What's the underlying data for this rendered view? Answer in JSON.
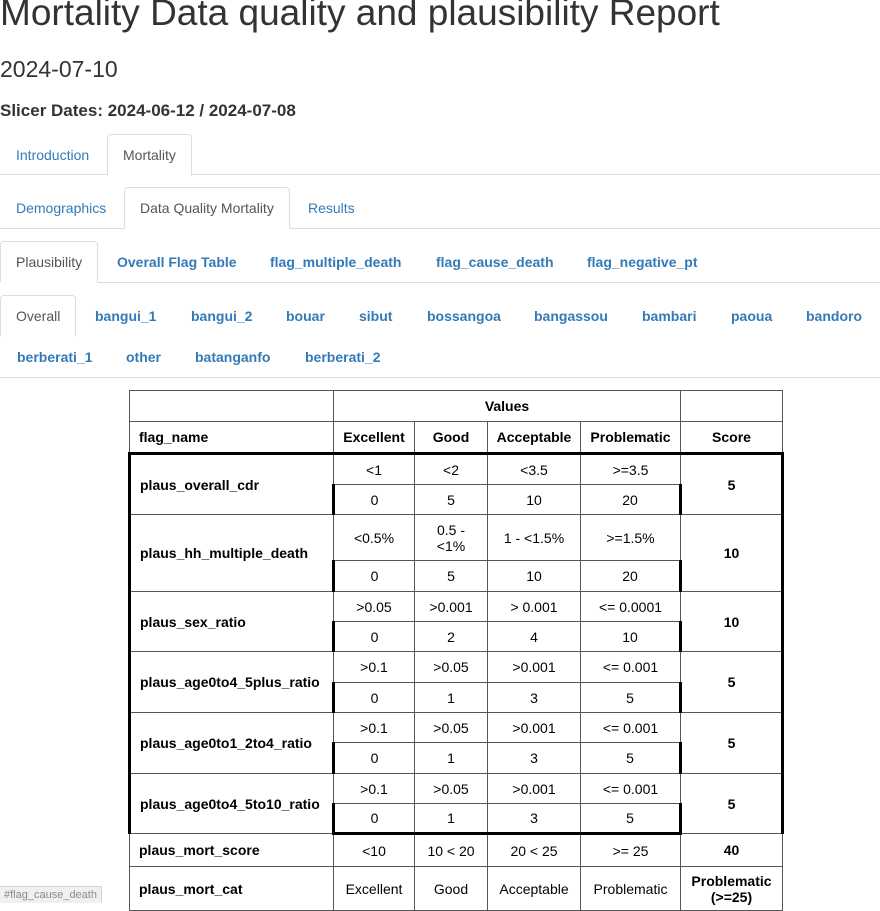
{
  "page": {
    "title": "Mortality Data quality and plausibility Report",
    "date": "2024-07-10",
    "slicer_dates": "Slicer Dates: 2024-06-12 / 2024-07-08"
  },
  "tabs_main": [
    {
      "label": "Introduction",
      "active": false
    },
    {
      "label": "Mortality",
      "active": true
    }
  ],
  "tabs_mortality": [
    {
      "label": "Demographics",
      "active": false
    },
    {
      "label": "Data Quality Mortality",
      "active": true
    },
    {
      "label": "Results",
      "active": false
    }
  ],
  "tabs_quality": [
    {
      "label": "Plausibility",
      "active": true
    },
    {
      "label": "Overall Flag Table",
      "active": false
    },
    {
      "label": "flag_multiple_death",
      "active": false
    },
    {
      "label": "flag_cause_death",
      "active": false
    },
    {
      "label": "flag_negative_pt",
      "active": false
    }
  ],
  "tabs_location": [
    {
      "label": "Overall",
      "active": true
    },
    {
      "label": "bangui_1"
    },
    {
      "label": "bangui_2"
    },
    {
      "label": "bouar"
    },
    {
      "label": "sibut"
    },
    {
      "label": "bossangoa"
    },
    {
      "label": "bangassou"
    },
    {
      "label": "bambari"
    },
    {
      "label": "paoua"
    },
    {
      "label": "bandoro"
    },
    {
      "label": "berberati_1"
    },
    {
      "label": "other"
    },
    {
      "label": "batanganfo"
    },
    {
      "label": "berberati_2"
    }
  ],
  "table": {
    "header_values": "Values",
    "columns": [
      "flag_name",
      "Excellent",
      "Good",
      "Acceptable",
      "Problematic",
      "Score"
    ],
    "rows": [
      {
        "name": "plaus_overall_cdr",
        "thresholds": [
          "<1",
          "<2",
          "<3.5",
          ">=3.5"
        ],
        "points": [
          "0",
          "5",
          "10",
          "20"
        ],
        "score": "5"
      },
      {
        "name": "plaus_hh_multiple_death",
        "thresholds": [
          "<0.5%",
          "0.5 - <1%",
          "1 - <1.5%",
          ">=1.5%"
        ],
        "points": [
          "0",
          "5",
          "10",
          "20"
        ],
        "score": "10"
      },
      {
        "name": "plaus_sex_ratio",
        "thresholds": [
          ">0.05",
          ">0.001",
          "> 0.001",
          "<= 0.0001"
        ],
        "points": [
          "0",
          "2",
          "4",
          "10"
        ],
        "score": "10"
      },
      {
        "name": "plaus_age0to4_5plus_ratio",
        "thresholds": [
          ">0.1",
          ">0.05",
          ">0.001",
          "<= 0.001"
        ],
        "points": [
          "0",
          "1",
          "3",
          "5"
        ],
        "score": "5"
      },
      {
        "name": "plaus_age0to1_2to4_ratio",
        "thresholds": [
          ">0.1",
          ">0.05",
          ">0.001",
          "<= 0.001"
        ],
        "points": [
          "0",
          "1",
          "3",
          "5"
        ],
        "score": "5"
      },
      {
        "name": "plaus_age0to4_5to10_ratio",
        "thresholds": [
          ">0.1",
          ">0.05",
          ">0.001",
          "<= 0.001"
        ],
        "points": [
          "0",
          "1",
          "3",
          "5"
        ],
        "score": "5"
      }
    ],
    "score_row": {
      "name": "plaus_mort_score",
      "values": [
        "<10",
        "10 < 20",
        "20 < 25",
        ">= 25"
      ],
      "score": "40"
    },
    "cat_row": {
      "name": "plaus_mort_cat",
      "values": [
        "Excellent",
        "Good",
        "Acceptable",
        "Problematic"
      ],
      "score": "Problematic (>=25)"
    }
  },
  "status_bar": {
    "url": "#flag_cause_death"
  }
}
